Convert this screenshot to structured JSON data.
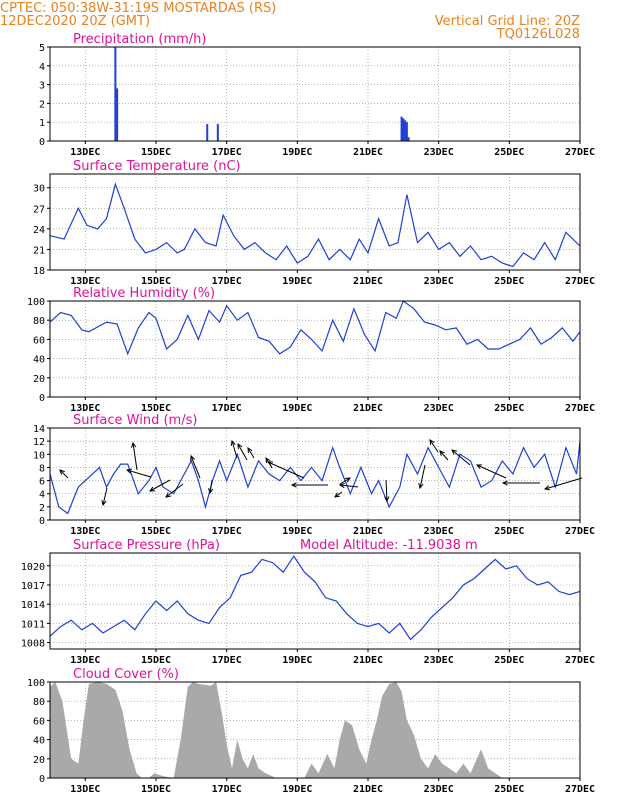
{
  "header": {
    "left_line1": "CPTEC:   050:38W-31:19S   MOSTARDAS (RS)",
    "left_line2": "12DEC2020 20Z (GMT)",
    "right_line1": "Vertical Grid Line: 20Z",
    "right_line2": "TQ0126L028"
  },
  "colors": {
    "header": "#e8821e",
    "title": "#e0119a",
    "series": "#1f3fd6",
    "cloud": "#a9a9a9",
    "grid": "#8a8a8a"
  },
  "chart_data": [
    {
      "type": "bar",
      "title": "Precipitation (mm/h)",
      "xlim": [
        0,
        15
      ],
      "x_ticks": [
        1,
        3,
        5,
        7,
        9,
        11,
        13,
        15
      ],
      "x_tick_labels": [
        "13DEC",
        "15DEC",
        "17DEC",
        "19DEC",
        "21DEC",
        "23DEC",
        "25DEC",
        "27DEC"
      ],
      "ylim": [
        0,
        5
      ],
      "y_ticks": [
        0,
        1,
        2,
        3,
        4,
        5
      ],
      "x": [
        1.85,
        1.9,
        4.45,
        4.75,
        9.95,
        10.0,
        10.05,
        10.1,
        10.15
      ],
      "values": [
        5.0,
        2.8,
        0.9,
        0.9,
        1.3,
        1.2,
        1.1,
        1.0,
        0.2
      ]
    },
    {
      "type": "line",
      "title": "Surface Temperature (nC)",
      "xlim": [
        0,
        15
      ],
      "x_ticks": [
        1,
        3,
        5,
        7,
        9,
        11,
        13,
        15
      ],
      "x_tick_labels": [
        "13DEC",
        "15DEC",
        "17DEC",
        "19DEC",
        "21DEC",
        "23DEC",
        "25DEC",
        "27DEC"
      ],
      "ylim": [
        18,
        32
      ],
      "y_ticks": [
        18,
        21,
        24,
        27,
        30
      ],
      "x": [
        0,
        0.4,
        0.8,
        1.05,
        1.35,
        1.6,
        1.85,
        2.1,
        2.4,
        2.7,
        3.0,
        3.3,
        3.6,
        3.8,
        4.1,
        4.4,
        4.7,
        4.9,
        5.2,
        5.5,
        5.8,
        6.1,
        6.4,
        6.7,
        7.0,
        7.3,
        7.6,
        7.9,
        8.2,
        8.5,
        8.75,
        9.0,
        9.3,
        9.6,
        9.85,
        10.1,
        10.4,
        10.7,
        11.0,
        11.3,
        11.6,
        11.9,
        12.2,
        12.5,
        12.8,
        13.1,
        13.4,
        13.7,
        14.0,
        14.3,
        14.6,
        15.0
      ],
      "values": [
        23,
        22.5,
        27,
        24.5,
        24,
        25.5,
        30.5,
        27,
        22.5,
        20.5,
        21,
        22,
        20.5,
        21,
        24,
        22,
        21.5,
        26,
        23,
        21,
        22,
        20.5,
        19.5,
        21.5,
        19,
        20,
        22.5,
        19.5,
        21,
        19.5,
        22.5,
        20.5,
        25.5,
        21.5,
        22,
        29,
        22,
        23.5,
        21,
        22,
        20,
        21.5,
        19.5,
        20,
        19,
        18.5,
        20.5,
        19.5,
        22,
        19.5,
        23.5,
        21.5
      ]
    },
    {
      "type": "line",
      "title": "Relative Humidity (%)",
      "xlim": [
        0,
        15
      ],
      "x_ticks": [
        1,
        3,
        5,
        7,
        9,
        11,
        13,
        15
      ],
      "x_tick_labels": [
        "13DEC",
        "15DEC",
        "17DEC",
        "19DEC",
        "21DEC",
        "23DEC",
        "25DEC",
        "27DEC"
      ],
      "ylim": [
        0,
        100
      ],
      "y_ticks": [
        0,
        20,
        40,
        60,
        80,
        100
      ],
      "x": [
        0,
        0.3,
        0.6,
        0.9,
        1.1,
        1.3,
        1.6,
        1.9,
        2.2,
        2.5,
        2.8,
        3.0,
        3.3,
        3.6,
        3.9,
        4.2,
        4.5,
        4.8,
        5.0,
        5.3,
        5.6,
        5.9,
        6.2,
        6.5,
        6.8,
        7.1,
        7.4,
        7.7,
        8.0,
        8.3,
        8.6,
        8.9,
        9.2,
        9.5,
        9.8,
        10.0,
        10.3,
        10.6,
        10.9,
        11.2,
        11.5,
        11.8,
        12.1,
        12.4,
        12.7,
        13.0,
        13.3,
        13.6,
        13.9,
        14.2,
        14.5,
        14.8,
        15.0
      ],
      "values": [
        78,
        88,
        85,
        70,
        68,
        72,
        78,
        76,
        45,
        72,
        88,
        82,
        50,
        60,
        85,
        60,
        90,
        78,
        95,
        80,
        88,
        62,
        58,
        45,
        52,
        70,
        60,
        48,
        80,
        58,
        92,
        65,
        48,
        88,
        82,
        100,
        92,
        78,
        75,
        70,
        72,
        55,
        60,
        50,
        50,
        55,
        60,
        72,
        55,
        62,
        72,
        58,
        68
      ]
    },
    {
      "type": "line",
      "title": "Surface Wind (m/s)",
      "xlim": [
        0,
        15
      ],
      "x_ticks": [
        1,
        3,
        5,
        7,
        9,
        11,
        13,
        15
      ],
      "x_tick_labels": [
        "13DEC",
        "15DEC",
        "17DEC",
        "19DEC",
        "21DEC",
        "23DEC",
        "25DEC",
        "27DEC"
      ],
      "ylim": [
        0,
        14
      ],
      "y_ticks": [
        0,
        2,
        4,
        6,
        8,
        10,
        12,
        14
      ],
      "x": [
        0,
        0.25,
        0.5,
        0.8,
        1.1,
        1.4,
        1.6,
        1.8,
        2.0,
        2.2,
        2.5,
        2.8,
        3.0,
        3.2,
        3.5,
        3.8,
        4.0,
        4.2,
        4.4,
        4.6,
        4.8,
        5.0,
        5.3,
        5.6,
        5.9,
        6.2,
        6.5,
        6.8,
        7.1,
        7.4,
        7.7,
        8.0,
        8.2,
        8.5,
        8.8,
        9.1,
        9.3,
        9.6,
        9.9,
        10.1,
        10.4,
        10.7,
        11.0,
        11.3,
        11.6,
        11.9,
        12.2,
        12.5,
        12.8,
        13.1,
        13.4,
        13.7,
        14.0,
        14.3,
        14.6,
        14.9,
        15.0
      ],
      "values": [
        7,
        2,
        1,
        5,
        6.5,
        8,
        5,
        7,
        8.5,
        8.5,
        4,
        6,
        8,
        5,
        4,
        7,
        9,
        6,
        2,
        6,
        9,
        6,
        10,
        5,
        9,
        7,
        6,
        8,
        6,
        8,
        6,
        11,
        8,
        4,
        8,
        4,
        6,
        2,
        5,
        10,
        7,
        11,
        8,
        5,
        10,
        9,
        5,
        6,
        9,
        7,
        11,
        8,
        10,
        5,
        11,
        7,
        12
      ]
    },
    {
      "type": "line",
      "title": "Surface Pressure (hPa)",
      "subtitle": "Model Altitude: -11.9038 m",
      "xlim": [
        0,
        15
      ],
      "x_ticks": [
        1,
        3,
        5,
        7,
        9,
        11,
        13,
        15
      ],
      "x_tick_labels": [
        "13DEC",
        "15DEC",
        "17DEC",
        "19DEC",
        "21DEC",
        "23DEC",
        "25DEC",
        "27DEC"
      ],
      "ylim": [
        1007,
        1022
      ],
      "y_ticks": [
        1008,
        1011,
        1014,
        1017,
        1020
      ],
      "x": [
        0,
        0.3,
        0.6,
        0.9,
        1.2,
        1.5,
        1.8,
        2.1,
        2.4,
        2.7,
        3.0,
        3.3,
        3.6,
        3.9,
        4.2,
        4.5,
        4.8,
        5.1,
        5.4,
        5.7,
        6.0,
        6.3,
        6.6,
        6.9,
        7.2,
        7.5,
        7.8,
        8.1,
        8.4,
        8.7,
        9.0,
        9.3,
        9.6,
        9.9,
        10.2,
        10.5,
        10.8,
        11.1,
        11.4,
        11.7,
        12.0,
        12.3,
        12.6,
        12.9,
        13.2,
        13.5,
        13.8,
        14.1,
        14.4,
        14.7,
        15.0
      ],
      "values": [
        1009,
        1010.5,
        1011.5,
        1010,
        1011,
        1009.5,
        1010.5,
        1011.5,
        1010,
        1012.5,
        1014.5,
        1013,
        1014.5,
        1012.5,
        1011.5,
        1011,
        1013.5,
        1015,
        1018.5,
        1019,
        1021,
        1020.5,
        1019,
        1021.5,
        1019,
        1017.5,
        1015,
        1014.5,
        1012.5,
        1011,
        1010.5,
        1011,
        1009.5,
        1011,
        1008.5,
        1010,
        1012,
        1013.5,
        1015,
        1017,
        1018,
        1019.5,
        1021,
        1019.5,
        1020,
        1018,
        1017,
        1017.5,
        1016,
        1015.5,
        1016
      ]
    },
    {
      "type": "area",
      "title": "Cloud Cover (%)",
      "xlim": [
        0,
        15
      ],
      "x_ticks": [
        1,
        3,
        5,
        7,
        9,
        11,
        13,
        15
      ],
      "x_tick_labels": [
        "13DEC",
        "15DEC",
        "17DEC",
        "19DEC",
        "21DEC",
        "23DEC",
        "25DEC",
        "27DEC"
      ],
      "ylim": [
        0,
        100
      ],
      "y_ticks": [
        0,
        20,
        40,
        60,
        80,
        100
      ],
      "x": [
        0,
        0.15,
        0.35,
        0.6,
        0.8,
        0.95,
        1.1,
        1.35,
        1.6,
        1.85,
        2.05,
        2.25,
        2.45,
        2.6,
        2.8,
        2.95,
        3.2,
        3.5,
        3.7,
        3.9,
        4.05,
        4.2,
        4.4,
        4.55,
        4.7,
        4.85,
        5.0,
        5.15,
        5.3,
        5.45,
        5.6,
        5.75,
        5.9,
        6.1,
        6.4,
        6.7,
        7.0,
        7.2,
        7.4,
        7.6,
        7.85,
        8.05,
        8.2,
        8.35,
        8.55,
        8.75,
        8.95,
        9.1,
        9.25,
        9.4,
        9.6,
        9.8,
        9.95,
        10.1,
        10.3,
        10.5,
        10.7,
        10.9,
        11.1,
        11.3,
        11.5,
        11.7,
        11.9,
        12.2,
        12.4,
        12.6,
        12.8,
        13.0,
        13.2,
        13.5,
        13.8,
        14.1,
        14.4,
        14.6,
        14.8,
        15.0
      ],
      "values": [
        95,
        100,
        80,
        20,
        15,
        60,
        98,
        100,
        98,
        92,
        70,
        30,
        5,
        0,
        0,
        5,
        2,
        0,
        40,
        95,
        100,
        98,
        97,
        96,
        100,
        70,
        35,
        10,
        40,
        20,
        10,
        25,
        10,
        5,
        0,
        0,
        0,
        0,
        15,
        5,
        25,
        10,
        40,
        60,
        55,
        30,
        15,
        40,
        60,
        85,
        98,
        100,
        90,
        60,
        45,
        20,
        10,
        25,
        15,
        10,
        5,
        15,
        5,
        30,
        10,
        5,
        0,
        0,
        0,
        0,
        0,
        0,
        0,
        0,
        0,
        0
      ]
    }
  ]
}
